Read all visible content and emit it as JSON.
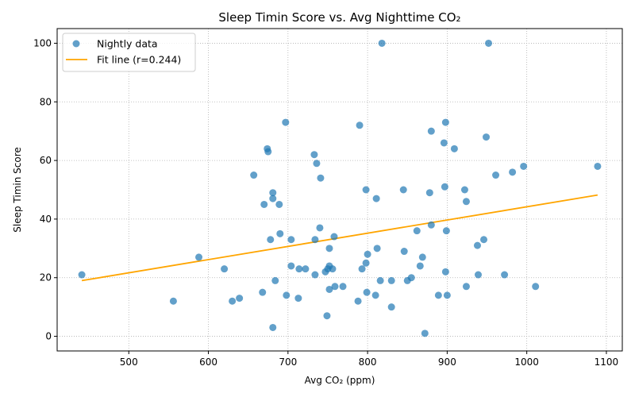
{
  "chart_data": {
    "type": "scatter",
    "title": "Sleep Timin Score vs. Avg Nighttime CO₂",
    "xlabel": "Avg CO₂ (ppm)",
    "ylabel": "Sleep Timin Score",
    "xlim": [
      410,
      1120
    ],
    "ylim": [
      -5,
      105
    ],
    "x_ticks": [
      500,
      600,
      700,
      800,
      900,
      1000,
      1100
    ],
    "y_ticks": [
      0,
      20,
      40,
      60,
      80,
      100
    ],
    "grid": true,
    "grid_style": "dotted",
    "legend_position": "top-left",
    "series": [
      {
        "name": "Nightly data",
        "kind": "scatter",
        "color": "#1f77b4",
        "points": [
          [
            441,
            21
          ],
          [
            556,
            12
          ],
          [
            588,
            27
          ],
          [
            620,
            23
          ],
          [
            630,
            12
          ],
          [
            639,
            13
          ],
          [
            657,
            55
          ],
          [
            668,
            15
          ],
          [
            670,
            45
          ],
          [
            674,
            64
          ],
          [
            675,
            63
          ],
          [
            678,
            33
          ],
          [
            681,
            49
          ],
          [
            681,
            47
          ],
          [
            681,
            3
          ],
          [
            684,
            19
          ],
          [
            689,
            45
          ],
          [
            690,
            35
          ],
          [
            697,
            73
          ],
          [
            698,
            14
          ],
          [
            704,
            33
          ],
          [
            704,
            24
          ],
          [
            713,
            13
          ],
          [
            714,
            23
          ],
          [
            722,
            23
          ],
          [
            733,
            62
          ],
          [
            734,
            33
          ],
          [
            734,
            21
          ],
          [
            736,
            59
          ],
          [
            740,
            37
          ],
          [
            741,
            54
          ],
          [
            747,
            22
          ],
          [
            749,
            7
          ],
          [
            750,
            23
          ],
          [
            752,
            30
          ],
          [
            752,
            24
          ],
          [
            752,
            16
          ],
          [
            756,
            23
          ],
          [
            758,
            34
          ],
          [
            759,
            17
          ],
          [
            769,
            17
          ],
          [
            788,
            12
          ],
          [
            790,
            72
          ],
          [
            793,
            23
          ],
          [
            798,
            50
          ],
          [
            798,
            25
          ],
          [
            799,
            15
          ],
          [
            800,
            28
          ],
          [
            810,
            14
          ],
          [
            811,
            47
          ],
          [
            812,
            30
          ],
          [
            816,
            19
          ],
          [
            818,
            100
          ],
          [
            830,
            19
          ],
          [
            830,
            10
          ],
          [
            845,
            50
          ],
          [
            846,
            29
          ],
          [
            850,
            19
          ],
          [
            855,
            20
          ],
          [
            862,
            36
          ],
          [
            866,
            24
          ],
          [
            869,
            27
          ],
          [
            872,
            1
          ],
          [
            878,
            49
          ],
          [
            880,
            38
          ],
          [
            880,
            70
          ],
          [
            889,
            14
          ],
          [
            896,
            66
          ],
          [
            897,
            51
          ],
          [
            898,
            73
          ],
          [
            898,
            22
          ],
          [
            899,
            36
          ],
          [
            900,
            14
          ],
          [
            909,
            64
          ],
          [
            922,
            50
          ],
          [
            924,
            17
          ],
          [
            924,
            46
          ],
          [
            938,
            31
          ],
          [
            939,
            21
          ],
          [
            946,
            33
          ],
          [
            949,
            68
          ],
          [
            952,
            100
          ],
          [
            961,
            55
          ],
          [
            972,
            21
          ],
          [
            982,
            56
          ],
          [
            996,
            58
          ],
          [
            1011,
            17
          ],
          [
            1089,
            58
          ]
        ]
      },
      {
        "name": "Fit line (r=0.244)",
        "kind": "line",
        "color": "#ffa500",
        "points": [
          [
            441,
            19
          ],
          [
            1089,
            48.2
          ]
        ]
      }
    ]
  }
}
